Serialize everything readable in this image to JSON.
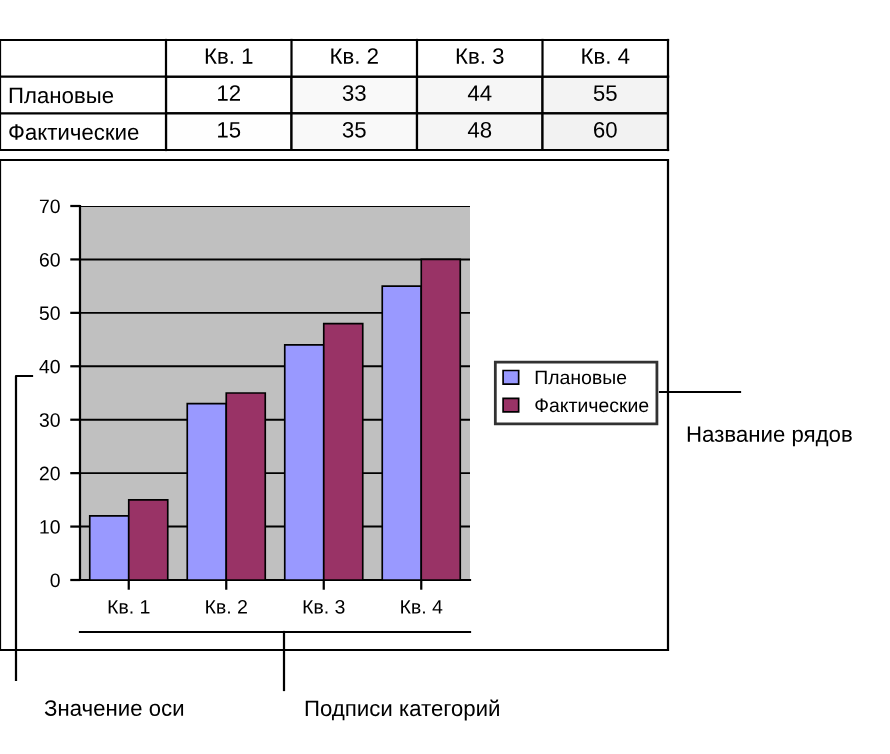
{
  "chart_data": [
    {
      "type": "heatmap",
      "categories": [
        "Кв. 1",
        "Кв. 2",
        "Кв. 3",
        "Кв. 4"
      ],
      "y_categories": [
        "Плановые",
        "Фактические"
      ],
      "cells": [
        [
          12,
          33,
          44,
          55
        ],
        [
          15,
          35,
          48,
          60
        ]
      ],
      "cell_labels": [
        [
          "12",
          "33",
          "44",
          "55"
        ],
        [
          "15",
          "35",
          "48",
          "60"
        ]
      ]
    },
    {
      "type": "bar",
      "categories": [
        "Кв. 1",
        "Кв. 2",
        "Кв. 3",
        "Кв. 4"
      ],
      "series": [
        {
          "name": "Плановые",
          "color": "#9999ff",
          "values": [
            12,
            33,
            44,
            55
          ]
        },
        {
          "name": "Фактические",
          "color": "#993366",
          "values": [
            15,
            35,
            48,
            60
          ]
        }
      ],
      "ylim": [
        0,
        70
      ],
      "yticks": [
        0,
        10,
        20,
        30,
        40,
        50,
        60,
        70
      ],
      "grid": "y",
      "legend": "right",
      "annotations": [
        "Значение оси",
        "Подписи категорий",
        "Название рядов"
      ]
    }
  ]
}
